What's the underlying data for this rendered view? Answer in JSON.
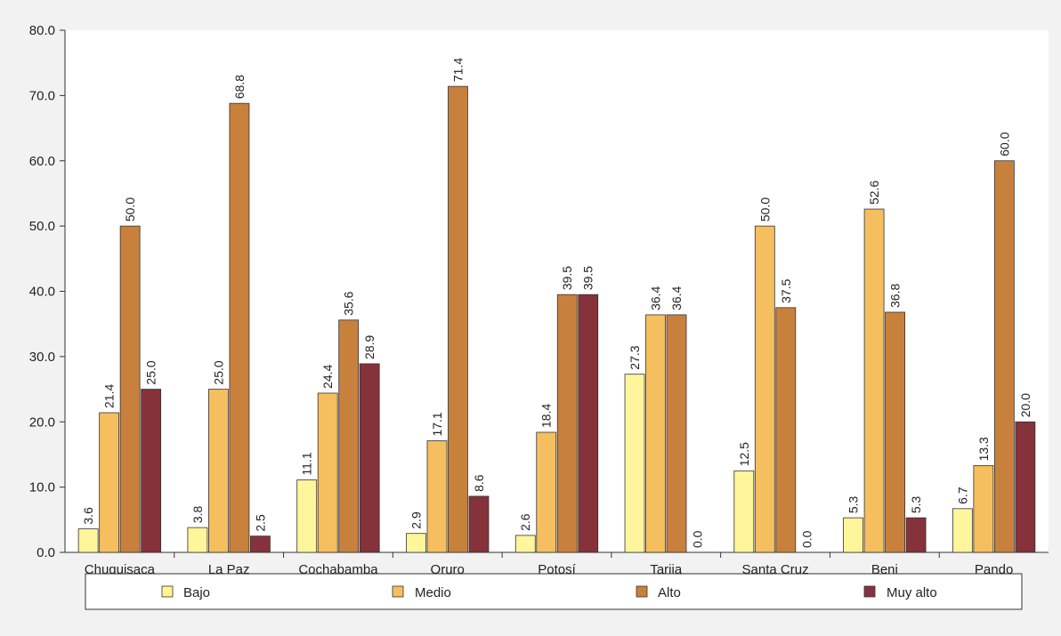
{
  "chart_data": {
    "type": "bar",
    "categories": [
      "Chuquisaca",
      "La Paz",
      "Cochabamba",
      "Oruro",
      "Potosí",
      "Tarija",
      "Santa Cruz",
      "Beni",
      "Pando"
    ],
    "series": [
      {
        "name": "Bajo",
        "color": "#FFF59A",
        "values": [
          3.6,
          3.8,
          11.1,
          2.9,
          2.6,
          27.3,
          12.5,
          5.3,
          6.7
        ]
      },
      {
        "name": "Medio",
        "color": "#F5BE5E",
        "values": [
          21.4,
          25.0,
          24.4,
          17.1,
          18.4,
          36.4,
          50.0,
          52.6,
          13.3
        ]
      },
      {
        "name": "Alto",
        "color": "#C8813C",
        "values": [
          50.0,
          68.8,
          35.6,
          71.4,
          39.5,
          36.4,
          37.5,
          36.8,
          60.0
        ]
      },
      {
        "name": "Muy alto",
        "color": "#85323A",
        "values": [
          25.0,
          2.5,
          28.9,
          8.6,
          39.5,
          0.0,
          0.0,
          5.3,
          20.0
        ]
      }
    ],
    "y_ticks": [
      "0.0",
      "10.0",
      "20.0",
      "30.0",
      "40.0",
      "50.0",
      "60.0",
      "70.0",
      "80.0"
    ],
    "ylim": [
      0,
      80
    ],
    "grid": false,
    "legend_position": "bottom",
    "background": "#F2F2F2"
  }
}
